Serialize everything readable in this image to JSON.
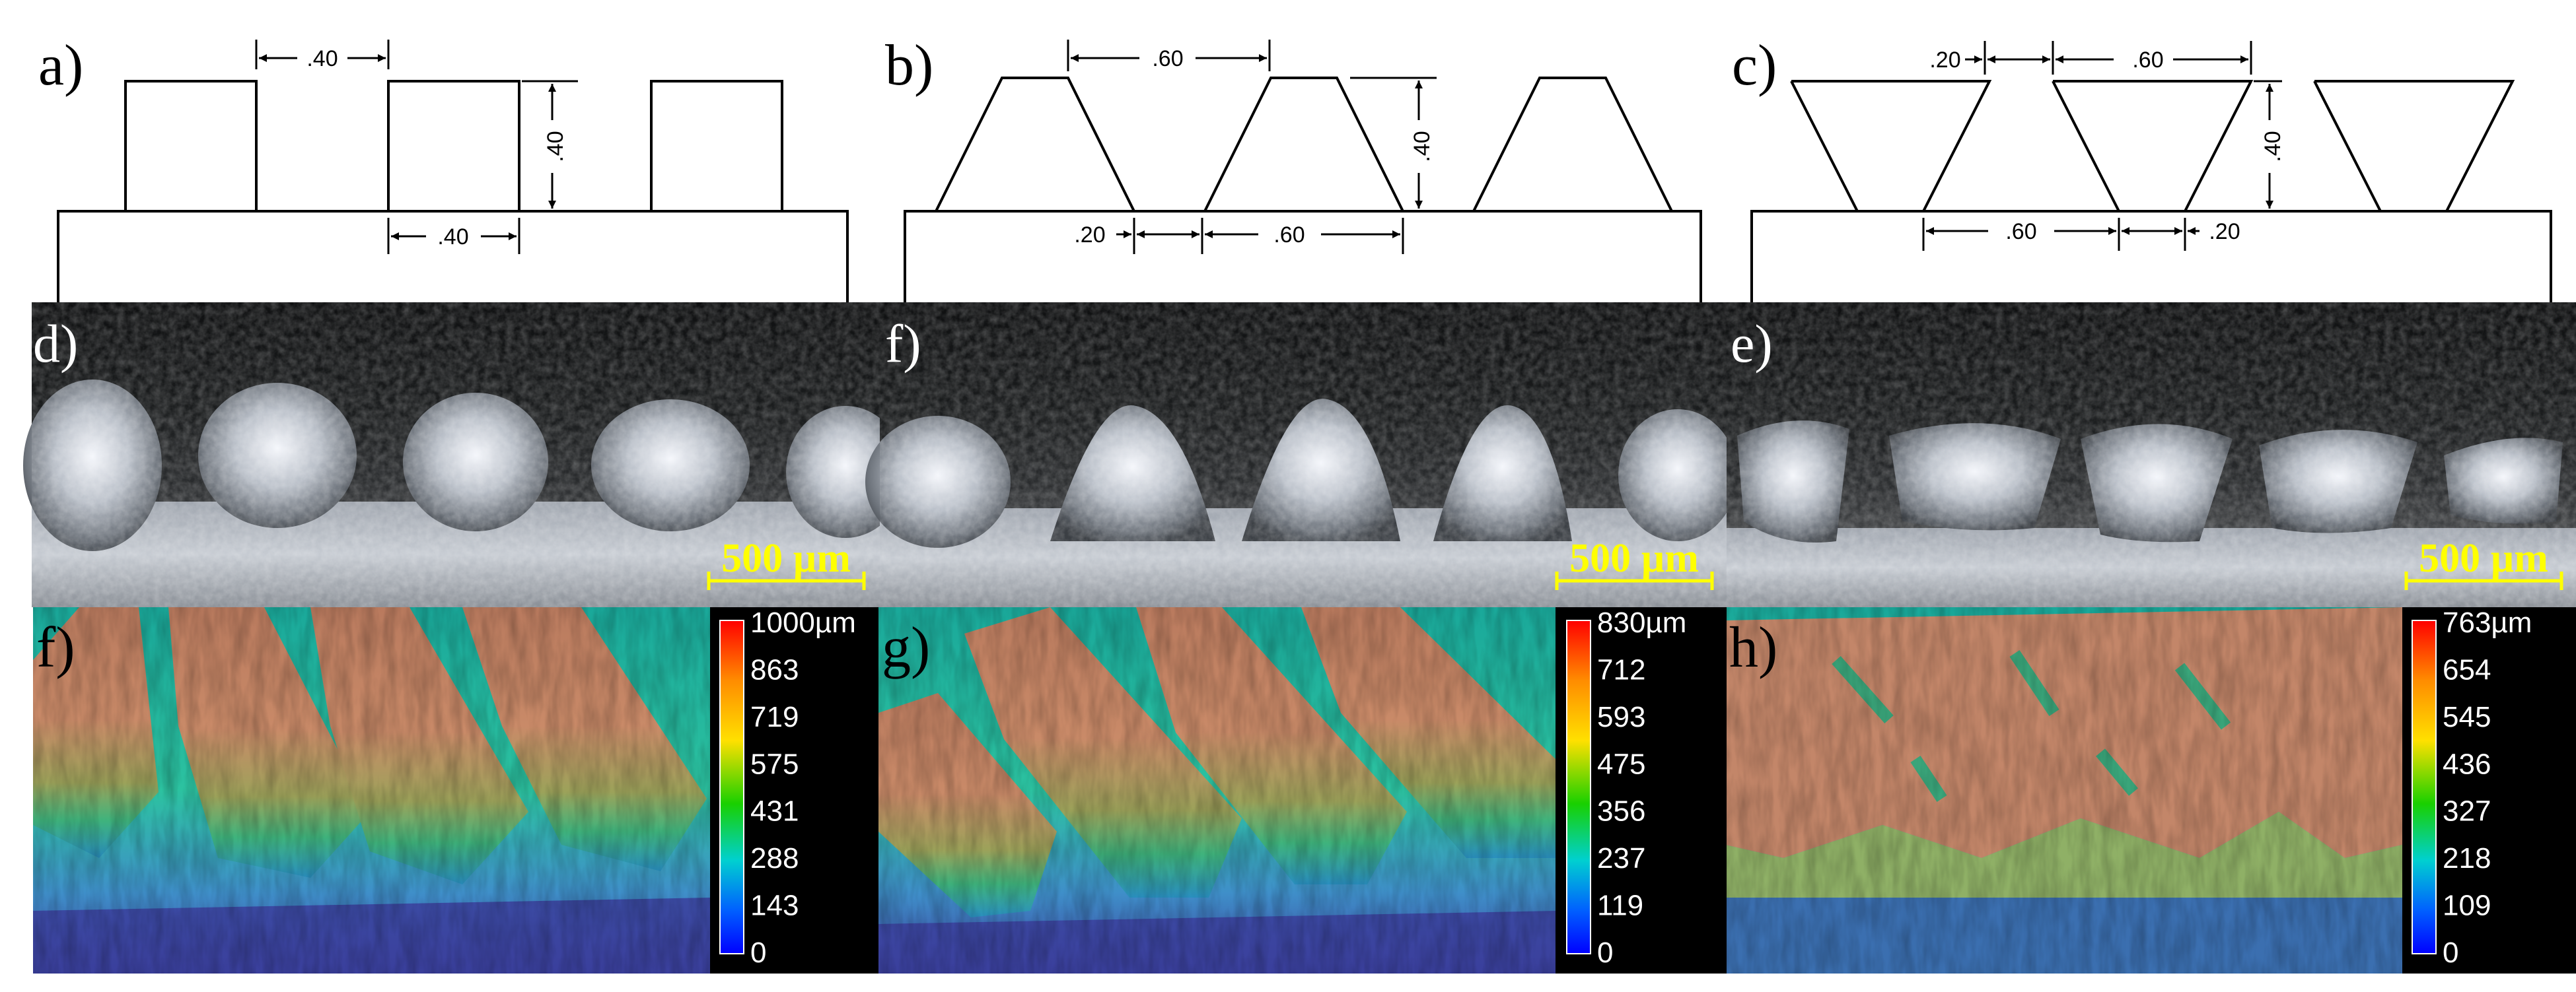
{
  "labels": {
    "a": "a)",
    "b": "b)",
    "c": "c)",
    "d": "d)",
    "f_photo": "f)",
    "e": "e)",
    "f_map": "f)",
    "g": "g)",
    "h": "h)"
  },
  "dimensions": {
    "a_top": ".40",
    "a_height": ".40",
    "a_bottom": ".40",
    "b_top": ".60",
    "b_height": ".40",
    "b_bottom_left": ".20",
    "b_bottom_right": ".60",
    "c_top_left": ".20",
    "c_top_right": ".60",
    "c_height": ".40",
    "c_bottom_left": ".60",
    "c_bottom_right": ".20"
  },
  "scale_bars": [
    "500 µm",
    "500 µm",
    "500 µm"
  ],
  "colorbars": [
    {
      "ticks": [
        "1000µm",
        "863",
        "719",
        "575",
        "431",
        "288",
        "143",
        "0"
      ]
    },
    {
      "ticks": [
        "830µm",
        "712",
        "593",
        "475",
        "356",
        "237",
        "119",
        "0"
      ]
    },
    {
      "ticks": [
        "763µm",
        "654",
        "545",
        "436",
        "327",
        "218",
        "109",
        "0"
      ]
    }
  ],
  "colors": {
    "photo_bg": "#151617",
    "map_peak": "#c9876a",
    "map_low": "#2f3fa0",
    "scale_bar": "#ffff00",
    "colorbar_bg": "#000000"
  }
}
